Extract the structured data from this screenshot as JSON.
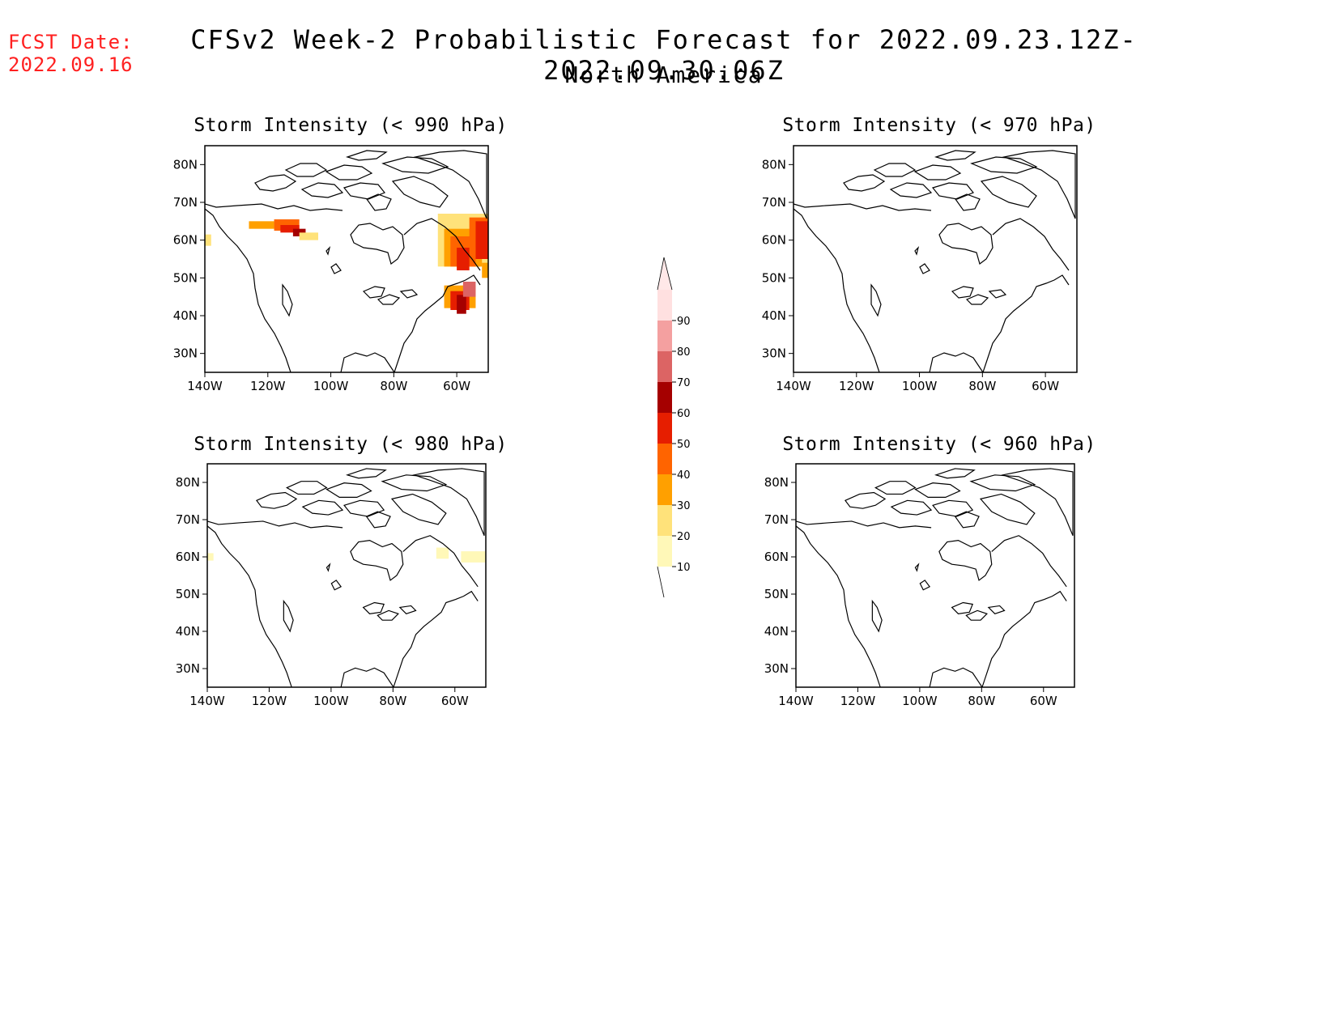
{
  "header": {
    "fcst_label": "FCST Date:",
    "fcst_date": "2022.09.16",
    "title": "CFSv2 Week-2 Probabilistic Forecast for 2022.09.23.12Z-2022.09.30.06Z",
    "region": "North America"
  },
  "panels": [
    {
      "id": "p990",
      "title": "Storm Intensity (< 990 hPa)"
    },
    {
      "id": "p970",
      "title": "Storm Intensity (< 970 hPa)"
    },
    {
      "id": "p980",
      "title": "Storm Intensity (< 980 hPa)"
    },
    {
      "id": "p960",
      "title": "Storm Intensity (< 960 hPa)"
    }
  ],
  "map_axes": {
    "lat_labels": [
      "80N",
      "70N",
      "60N",
      "50N",
      "40N",
      "30N"
    ],
    "lon_labels": [
      "140W",
      "120W",
      "100W",
      "80W",
      "60W"
    ],
    "lat_range": [
      25,
      85
    ],
    "lon_range": [
      -140,
      -50
    ]
  },
  "colorbar": {
    "levels": [
      "10",
      "20",
      "30",
      "40",
      "50",
      "60",
      "70",
      "80",
      "90"
    ],
    "colors": [
      "#fff8b8",
      "#ffe27a",
      "#ffa000",
      "#ff6400",
      "#e61e00",
      "#a50000",
      "#dc6464",
      "#f4a0a0",
      "#ffe0e0"
    ]
  }
}
